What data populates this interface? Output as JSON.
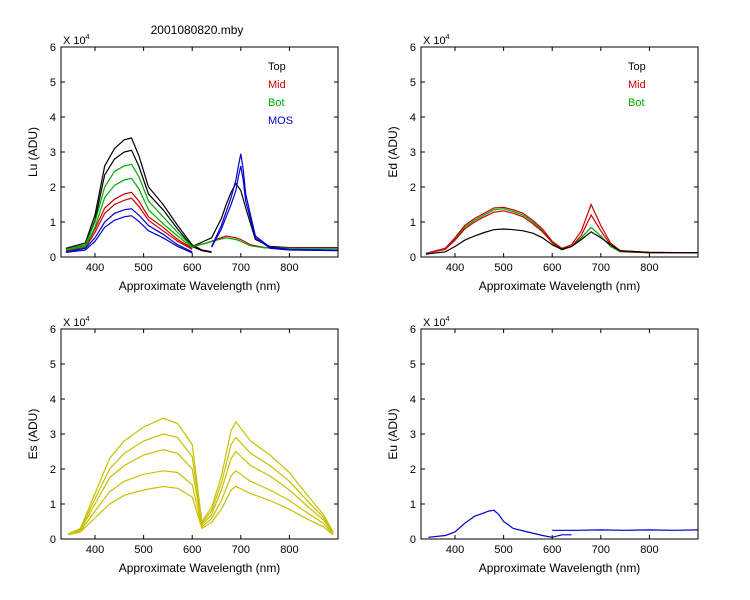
{
  "figure_title": "2001080820.mby",
  "chart_data": [
    {
      "type": "line",
      "title": "",
      "xlabel": "Approximate Wavelength (nm)",
      "ylabel": "Lu (ADU)",
      "y_multiplier_label": "X 10",
      "y_multiplier_exp": "4",
      "xlim": [
        330,
        900
      ],
      "ylim": [
        0,
        6
      ],
      "xticks": [
        400,
        500,
        600,
        700,
        800
      ],
      "yticks": [
        0,
        1,
        2,
        3,
        4,
        5,
        6
      ],
      "grid": false,
      "legend_position": "top-right",
      "legend": [
        {
          "label": "Top",
          "color": "#000000"
        },
        {
          "label": "Mid",
          "color": "#cc0000"
        },
        {
          "label": "Bot",
          "color": "#00aa00"
        },
        {
          "label": "MOS",
          "color": "#0000cc"
        }
      ],
      "series": [
        {
          "name": "Top",
          "color": "#000000",
          "x": [
            340,
            380,
            400,
            420,
            440,
            460,
            475,
            490,
            510,
            540,
            570,
            600,
            620,
            640
          ],
          "y": [
            0.25,
            0.4,
            1.2,
            2.6,
            3.1,
            3.35,
            3.4,
            2.9,
            2.0,
            1.5,
            0.9,
            0.35,
            0.2,
            0.15
          ]
        },
        {
          "name": "Top",
          "color": "#000000",
          "x": [
            340,
            380,
            400,
            420,
            440,
            460,
            475,
            490,
            510,
            540,
            570,
            600,
            620,
            640
          ],
          "y": [
            0.22,
            0.35,
            1.05,
            2.35,
            2.8,
            3.0,
            3.05,
            2.6,
            1.8,
            1.35,
            0.8,
            0.3,
            0.18,
            0.13
          ]
        },
        {
          "name": "Top",
          "color": "#000000",
          "x": [
            600,
            640,
            660,
            670,
            680,
            690,
            700,
            710,
            730,
            760,
            800,
            900
          ],
          "y": [
            0.3,
            0.55,
            1.1,
            1.5,
            1.85,
            2.1,
            1.9,
            1.4,
            0.5,
            0.3,
            0.27,
            0.27
          ]
        },
        {
          "name": "Mid",
          "color": "#cc0000",
          "x": [
            340,
            380,
            400,
            420,
            440,
            460,
            475,
            490,
            510,
            540,
            570,
            600
          ],
          "y": [
            0.2,
            0.3,
            0.8,
            1.4,
            1.65,
            1.8,
            1.85,
            1.6,
            1.15,
            0.85,
            0.5,
            0.25
          ]
        },
        {
          "name": "Mid",
          "color": "#cc0000",
          "x": [
            340,
            380,
            400,
            420,
            440,
            460,
            475,
            490,
            510,
            540,
            570,
            600
          ],
          "y": [
            0.18,
            0.27,
            0.7,
            1.25,
            1.5,
            1.62,
            1.68,
            1.45,
            1.05,
            0.75,
            0.45,
            0.22
          ]
        },
        {
          "name": "Mid",
          "color": "#cc0000",
          "x": [
            600,
            630,
            650,
            670,
            690,
            700,
            720,
            750,
            800,
            900
          ],
          "y": [
            0.3,
            0.4,
            0.5,
            0.6,
            0.55,
            0.5,
            0.35,
            0.27,
            0.26,
            0.26
          ]
        },
        {
          "name": "Bot",
          "color": "#00aa00",
          "x": [
            340,
            380,
            400,
            420,
            440,
            460,
            475,
            490,
            510,
            540,
            570,
            600
          ],
          "y": [
            0.22,
            0.35,
            1.0,
            2.0,
            2.45,
            2.6,
            2.65,
            2.3,
            1.6,
            1.15,
            0.7,
            0.3
          ]
        },
        {
          "name": "Bot",
          "color": "#00aa00",
          "x": [
            340,
            380,
            400,
            420,
            440,
            460,
            475,
            490,
            510,
            540,
            570,
            600
          ],
          "y": [
            0.2,
            0.3,
            0.85,
            1.7,
            2.05,
            2.2,
            2.25,
            1.95,
            1.35,
            0.95,
            0.6,
            0.27
          ]
        },
        {
          "name": "Bot",
          "color": "#00aa00",
          "x": [
            600,
            630,
            650,
            670,
            690,
            700,
            720,
            750,
            800,
            900
          ],
          "y": [
            0.3,
            0.4,
            0.48,
            0.55,
            0.5,
            0.45,
            0.32,
            0.26,
            0.25,
            0.25
          ]
        },
        {
          "name": "MOS",
          "color": "#0000cc",
          "x": [
            340,
            380,
            400,
            420,
            440,
            460,
            475,
            490,
            510,
            540,
            570,
            600
          ],
          "y": [
            0.15,
            0.25,
            0.55,
            1.0,
            1.25,
            1.35,
            1.38,
            1.2,
            0.9,
            0.65,
            0.35,
            0.15
          ]
        },
        {
          "name": "MOS",
          "color": "#0000cc",
          "x": [
            340,
            380,
            400,
            420,
            440,
            460,
            475,
            490,
            510,
            540,
            570,
            600
          ],
          "y": [
            0.13,
            0.2,
            0.45,
            0.85,
            1.05,
            1.15,
            1.18,
            1.02,
            0.75,
            0.55,
            0.3,
            0.12
          ]
        },
        {
          "name": "MOS",
          "color": "#0000cc",
          "x": [
            640,
            660,
            670,
            680,
            690,
            695,
            700,
            705,
            710,
            730,
            760,
            800,
            900
          ],
          "y": [
            0.3,
            0.9,
            1.3,
            1.7,
            2.2,
            2.6,
            2.95,
            2.5,
            1.8,
            0.6,
            0.28,
            0.22,
            0.2
          ]
        },
        {
          "name": "MOS",
          "color": "#0000cc",
          "x": [
            640,
            660,
            670,
            680,
            690,
            695,
            700,
            705,
            710,
            730,
            760,
            800,
            900
          ],
          "y": [
            0.28,
            0.8,
            1.15,
            1.5,
            1.9,
            2.3,
            2.6,
            2.2,
            1.6,
            0.55,
            0.25,
            0.2,
            0.18
          ]
        }
      ]
    },
    {
      "type": "line",
      "title": "",
      "xlabel": "Approximate Wavelength (nm)",
      "ylabel": "Ed  (ADU)",
      "y_multiplier_label": "X 10",
      "y_multiplier_exp": "4",
      "xlim": [
        330,
        900
      ],
      "ylim": [
        0,
        6
      ],
      "xticks": [
        400,
        500,
        600,
        700,
        800
      ],
      "yticks": [
        0,
        1,
        2,
        3,
        4,
        5,
        6
      ],
      "grid": false,
      "legend_position": "top-right",
      "legend": [
        {
          "label": "Top",
          "color": "#000000"
        },
        {
          "label": "Mid",
          "color": "#cc0000"
        },
        {
          "label": "Bot",
          "color": "#00aa00"
        }
      ],
      "series": [
        {
          "name": "Bot",
          "color": "#00aa00",
          "x": [
            340,
            380,
            400,
            420,
            440,
            460,
            480,
            500,
            520,
            540,
            560,
            580,
            600,
            620,
            640,
            660,
            680,
            700,
            720,
            740,
            800,
            900
          ],
          "y": [
            0.1,
            0.25,
            0.5,
            0.85,
            1.05,
            1.2,
            1.35,
            1.38,
            1.3,
            1.2,
            1.0,
            0.75,
            0.4,
            0.2,
            0.3,
            0.55,
            0.85,
            0.6,
            0.3,
            0.15,
            0.12,
            0.12
          ]
        },
        {
          "name": "Mid",
          "color": "#cc0000",
          "x": [
            340,
            380,
            400,
            420,
            440,
            460,
            480,
            500,
            520,
            540,
            560,
            580,
            600,
            620,
            640,
            660,
            680,
            700,
            720,
            740,
            800,
            900
          ],
          "y": [
            0.1,
            0.25,
            0.55,
            0.9,
            1.1,
            1.25,
            1.4,
            1.42,
            1.35,
            1.25,
            1.05,
            0.8,
            0.45,
            0.25,
            0.35,
            0.75,
            1.5,
            0.9,
            0.4,
            0.18,
            0.13,
            0.12
          ]
        },
        {
          "name": "Mid",
          "color": "#cc0000",
          "x": [
            340,
            380,
            400,
            420,
            440,
            460,
            480,
            500,
            520,
            540,
            560,
            580,
            600,
            620,
            640,
            660,
            680,
            700,
            720,
            740,
            800,
            900
          ],
          "y": [
            0.1,
            0.22,
            0.48,
            0.8,
            1.0,
            1.15,
            1.28,
            1.32,
            1.25,
            1.15,
            0.95,
            0.72,
            0.42,
            0.22,
            0.3,
            0.62,
            1.2,
            0.75,
            0.35,
            0.16,
            0.12,
            0.12
          ]
        },
        {
          "name": "Top",
          "color": "#000000",
          "x": [
            340,
            380,
            400,
            420,
            440,
            460,
            480,
            500,
            520,
            540,
            560,
            580,
            600,
            620,
            640,
            660,
            680,
            700,
            720,
            740,
            800,
            900
          ],
          "y": [
            0.08,
            0.15,
            0.3,
            0.48,
            0.6,
            0.7,
            0.78,
            0.8,
            0.78,
            0.75,
            0.68,
            0.55,
            0.35,
            0.22,
            0.3,
            0.5,
            0.72,
            0.55,
            0.35,
            0.18,
            0.13,
            0.12
          ]
        }
      ]
    },
    {
      "type": "line",
      "title": "",
      "xlabel": "Approximate Wavelength (nm)",
      "ylabel": "Es  (ADU)",
      "y_multiplier_label": "X 10",
      "y_multiplier_exp": "4",
      "xlim": [
        330,
        900
      ],
      "ylim": [
        0,
        6
      ],
      "xticks": [
        400,
        500,
        600,
        700,
        800
      ],
      "yticks": [
        0,
        1,
        2,
        3,
        4,
        5,
        6
      ],
      "grid": false,
      "series": [
        {
          "color": "#c8c000",
          "x": [
            345,
            370,
            400,
            430,
            460,
            500,
            540,
            570,
            600,
            620,
            640,
            660,
            680,
            690,
            720,
            760,
            800,
            840,
            870,
            890
          ],
          "y": [
            0.15,
            0.3,
            1.3,
            2.3,
            2.8,
            3.2,
            3.45,
            3.3,
            2.7,
            0.5,
            0.9,
            1.8,
            3.1,
            3.35,
            2.8,
            2.4,
            1.9,
            1.2,
            0.7,
            0.2
          ]
        },
        {
          "color": "#c8c000",
          "x": [
            345,
            370,
            400,
            430,
            460,
            500,
            540,
            570,
            600,
            620,
            640,
            660,
            680,
            690,
            720,
            760,
            800,
            840,
            870,
            890
          ],
          "y": [
            0.15,
            0.28,
            1.15,
            2.0,
            2.45,
            2.8,
            3.0,
            2.9,
            2.35,
            0.45,
            0.8,
            1.6,
            2.7,
            2.9,
            2.45,
            2.1,
            1.65,
            1.05,
            0.62,
            0.18
          ]
        },
        {
          "color": "#c8c000",
          "x": [
            345,
            370,
            400,
            430,
            460,
            500,
            540,
            570,
            600,
            620,
            640,
            660,
            680,
            690,
            720,
            760,
            800,
            840,
            870,
            890
          ],
          "y": [
            0.14,
            0.25,
            1.0,
            1.75,
            2.1,
            2.4,
            2.55,
            2.45,
            2.0,
            0.4,
            0.7,
            1.4,
            2.3,
            2.5,
            2.1,
            1.8,
            1.4,
            0.9,
            0.55,
            0.16
          ]
        },
        {
          "color": "#c8c000",
          "x": [
            345,
            370,
            400,
            430,
            460,
            500,
            540,
            570,
            600,
            620,
            640,
            660,
            680,
            690,
            720,
            760,
            800,
            840,
            870,
            890
          ],
          "y": [
            0.13,
            0.22,
            0.8,
            1.35,
            1.65,
            1.85,
            1.95,
            1.9,
            1.55,
            0.35,
            0.58,
            1.1,
            1.8,
            1.95,
            1.65,
            1.4,
            1.1,
            0.72,
            0.45,
            0.14
          ]
        },
        {
          "color": "#c8c000",
          "x": [
            345,
            370,
            400,
            430,
            460,
            500,
            540,
            570,
            600,
            620,
            640,
            660,
            680,
            690,
            720,
            760,
            800,
            840,
            870,
            890
          ],
          "y": [
            0.12,
            0.2,
            0.6,
            1.0,
            1.25,
            1.4,
            1.5,
            1.45,
            1.2,
            0.3,
            0.48,
            0.85,
            1.4,
            1.5,
            1.3,
            1.1,
            0.85,
            0.55,
            0.35,
            0.12
          ]
        }
      ]
    },
    {
      "type": "line",
      "title": "",
      "xlabel": "Approximate Wavelength (nm)",
      "ylabel": "Eu  (ADU)",
      "y_multiplier_label": "X 10",
      "y_multiplier_exp": "4",
      "xlim": [
        330,
        900
      ],
      "ylim": [
        0,
        6
      ],
      "xticks": [
        400,
        500,
        600,
        700,
        800
      ],
      "yticks": [
        0,
        1,
        2,
        3,
        4,
        5,
        6
      ],
      "grid": false,
      "series": [
        {
          "color": "#0000cc",
          "x": [
            345,
            380,
            400,
            420,
            440,
            460,
            470,
            480,
            490,
            500,
            520,
            550,
            580,
            600,
            620,
            640
          ],
          "y": [
            0.05,
            0.1,
            0.2,
            0.45,
            0.65,
            0.75,
            0.8,
            0.82,
            0.7,
            0.5,
            0.3,
            0.2,
            0.1,
            0.05,
            0.12,
            0.12
          ]
        },
        {
          "color": "#0000cc",
          "x": [
            600,
            650,
            700,
            750,
            800,
            850,
            900
          ],
          "y": [
            0.25,
            0.25,
            0.26,
            0.25,
            0.26,
            0.25,
            0.26
          ]
        }
      ]
    }
  ]
}
